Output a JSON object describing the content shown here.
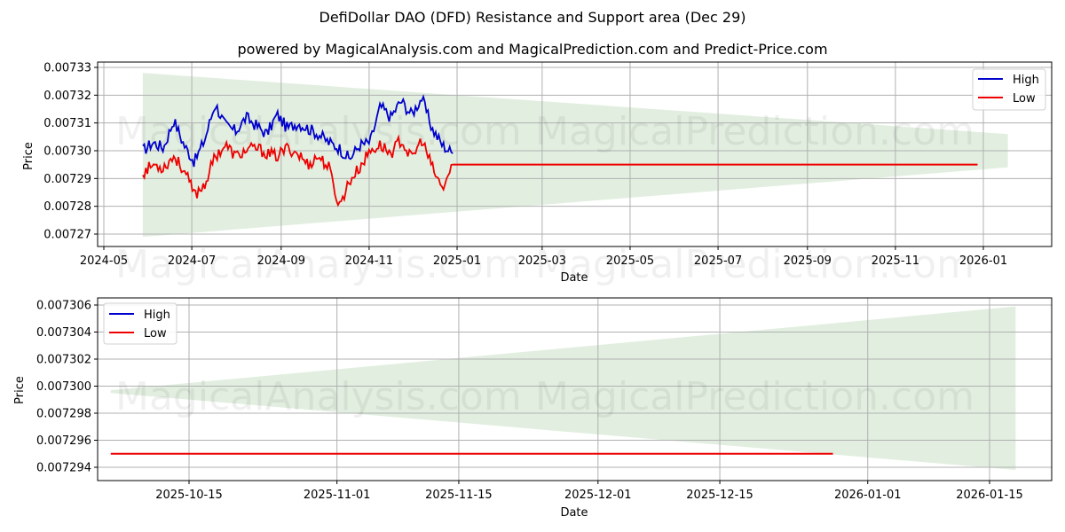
{
  "header": {
    "title": "DefiDollar DAO (DFD) Resistance and Support area (Dec 29)",
    "subtitle": "powered by MagicalAnalysis.com and MagicalPrediction.com and Predict-Price.com"
  },
  "watermarks": [
    "MagicalAnalysis.com",
    "MagicalPrediction.com"
  ],
  "colors": {
    "high": "#0000cc",
    "low": "#ee0000",
    "band": "#d8ead6",
    "grid": "#b0b0b0"
  },
  "chart_data": [
    {
      "type": "line",
      "title": "",
      "xlabel": "Date",
      "ylabel": "Price",
      "x_ticks": [
        "2024-05",
        "2024-07",
        "2024-09",
        "2024-11",
        "2025-01",
        "2025-03",
        "2025-05",
        "2025-07",
        "2025-09",
        "2025-11",
        "2026-01"
      ],
      "y_ticks": [
        "0.00727",
        "0.00728",
        "0.00729",
        "0.00730",
        "0.00731",
        "0.00732",
        "0.00733"
      ],
      "ylim": [
        0.007265,
        0.007332
      ],
      "grid": true,
      "legend": {
        "position": "upper right",
        "entries": [
          "High",
          "Low"
        ]
      },
      "series": [
        {
          "name": "High",
          "color": "#0000cc",
          "x_range": [
            "2024-05-28",
            "2024-12-29"
          ],
          "approx_range": [
            0.007294,
            0.007319
          ],
          "values_sample": [
            0.0073,
            0.007303,
            0.007301,
            0.007311,
            0.007302,
            0.007296,
            0.007304,
            0.007317,
            0.007309,
            0.007307,
            0.007312,
            0.007309,
            0.007306,
            0.007313,
            0.007308,
            0.00731,
            0.007308,
            0.007306,
            0.007303,
            0.007301,
            0.007297,
            0.007302,
            0.007303,
            0.007316,
            0.007312,
            0.007318,
            0.007313,
            0.007319,
            0.007308,
            0.007302,
            0.007299
          ]
        },
        {
          "name": "Low",
          "color": "#ee0000",
          "x_range": [
            "2024-05-28",
            "2024-12-29"
          ],
          "approx_range": [
            0.007278,
            0.007304
          ],
          "values_sample": [
            0.007292,
            0.007295,
            0.007294,
            0.007298,
            0.007293,
            0.007284,
            0.007288,
            0.007298,
            0.007302,
            0.007298,
            0.0073,
            0.007301,
            0.007299,
            0.007298,
            0.007301,
            0.007299,
            0.007295,
            0.007298,
            0.007294,
            0.00728,
            0.007289,
            0.007294,
            0.0073,
            0.007302,
            0.007299,
            0.007304,
            0.007297,
            0.007304,
            0.007294,
            0.007286,
            0.007295
          ]
        },
        {
          "name": "Low (projected)",
          "color": "#ee0000",
          "x_range": [
            "2024-12-29",
            "2025-12-28"
          ],
          "values": [
            0.007295,
            0.007295
          ]
        }
      ],
      "band": {
        "x_range": [
          "2024-05-28",
          "2026-01-18"
        ],
        "upper_start": 0.007328,
        "upper_end": 0.007306,
        "lower_start": 0.007269,
        "lower_end": 0.007294
      }
    },
    {
      "type": "line",
      "title": "",
      "xlabel": "Date",
      "ylabel": "Price",
      "x_ticks": [
        "2025-10-15",
        "2025-11-01",
        "2025-11-15",
        "2025-12-01",
        "2025-12-15",
        "2026-01-01",
        "2026-01-15"
      ],
      "y_ticks": [
        "0.007294",
        "0.007296",
        "0.007298",
        "0.007300",
        "0.007302",
        "0.007304",
        "0.007306"
      ],
      "ylim": [
        0.0072933,
        0.0073065
      ],
      "grid": true,
      "legend": {
        "position": "upper left",
        "entries": [
          "High",
          "Low"
        ]
      },
      "series": [
        {
          "name": "Low",
          "color": "#ee0000",
          "x_range": [
            "2025-10-06",
            "2025-12-28"
          ],
          "values": [
            0.007295,
            0.007295
          ]
        }
      ],
      "band": {
        "x_range": [
          "2025-10-06",
          "2026-01-18"
        ],
        "upper_start": 0.0072997,
        "upper_end": 0.0073059,
        "lower_start": 0.0072995,
        "lower_end": 0.0072938
      }
    }
  ]
}
